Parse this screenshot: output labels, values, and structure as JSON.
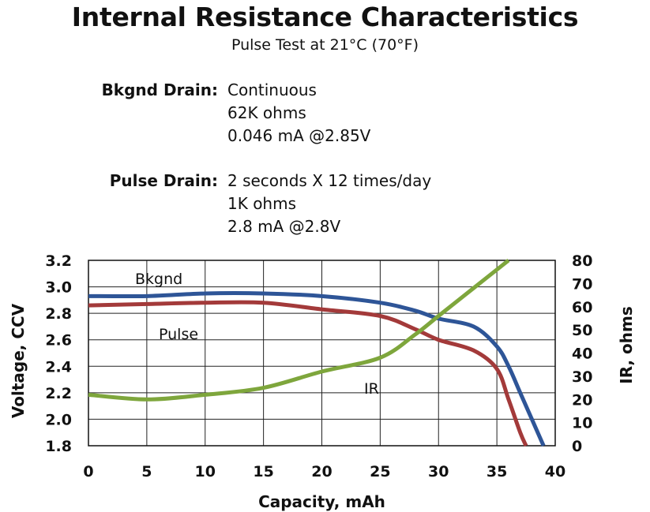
{
  "chart_data": {
    "type": "line",
    "title": "Internal Resistance Characteristics",
    "subtitle": "Pulse Test at 21°C (70°F)",
    "specs": [
      {
        "label": "Bkgnd Drain:",
        "lines": [
          "Continuous",
          "62K ohms",
          "0.046 mA @2.85V"
        ]
      },
      {
        "label": "Pulse Drain:",
        "lines": [
          "2 seconds X 12 times/day",
          "1K ohms",
          "2.8 mA @2.8V"
        ]
      }
    ],
    "xlabel": "Capacity, mAh",
    "ylabel": "Voltage, CCV",
    "y2label": "IR, ohms",
    "xlim": [
      0,
      40
    ],
    "ylim": [
      1.8,
      3.2
    ],
    "y2lim": [
      0,
      80
    ],
    "xticks": [
      "0",
      "5",
      "10",
      "15",
      "20",
      "25",
      "30",
      "35",
      "40"
    ],
    "yticks": [
      "1.8",
      "2.0",
      "2.2",
      "2.4",
      "2.6",
      "2.8",
      "3.0",
      "3.2"
    ],
    "y2ticks": [
      "0",
      "10",
      "20",
      "30",
      "40",
      "50",
      "60",
      "70",
      "80"
    ],
    "grid": true,
    "series": [
      {
        "name": "Bkgnd",
        "axis": "left",
        "color": "#2e5597",
        "points": [
          [
            0,
            2.93
          ],
          [
            5,
            2.93
          ],
          [
            10,
            2.95
          ],
          [
            15,
            2.95
          ],
          [
            20,
            2.93
          ],
          [
            25,
            2.88
          ],
          [
            28,
            2.82
          ],
          [
            30,
            2.76
          ],
          [
            33,
            2.7
          ],
          [
            35,
            2.55
          ],
          [
            36,
            2.4
          ],
          [
            37,
            2.2
          ],
          [
            38,
            2.0
          ],
          [
            39,
            1.8
          ]
        ]
      },
      {
        "name": "Pulse",
        "axis": "left",
        "color": "#a33a3a",
        "points": [
          [
            0,
            2.86
          ],
          [
            5,
            2.87
          ],
          [
            10,
            2.88
          ],
          [
            15,
            2.88
          ],
          [
            20,
            2.83
          ],
          [
            25,
            2.78
          ],
          [
            28,
            2.68
          ],
          [
            30,
            2.6
          ],
          [
            33,
            2.52
          ],
          [
            35,
            2.38
          ],
          [
            36,
            2.15
          ],
          [
            37,
            1.9
          ],
          [
            37.5,
            1.8
          ]
        ]
      },
      {
        "name": "IR",
        "axis": "right",
        "color": "#7ea63c",
        "points": [
          [
            0,
            22
          ],
          [
            5,
            20
          ],
          [
            10,
            22
          ],
          [
            15,
            25
          ],
          [
            20,
            32
          ],
          [
            25,
            38
          ],
          [
            28,
            48
          ],
          [
            30,
            56
          ],
          [
            33,
            68
          ],
          [
            36,
            80
          ]
        ]
      }
    ]
  }
}
